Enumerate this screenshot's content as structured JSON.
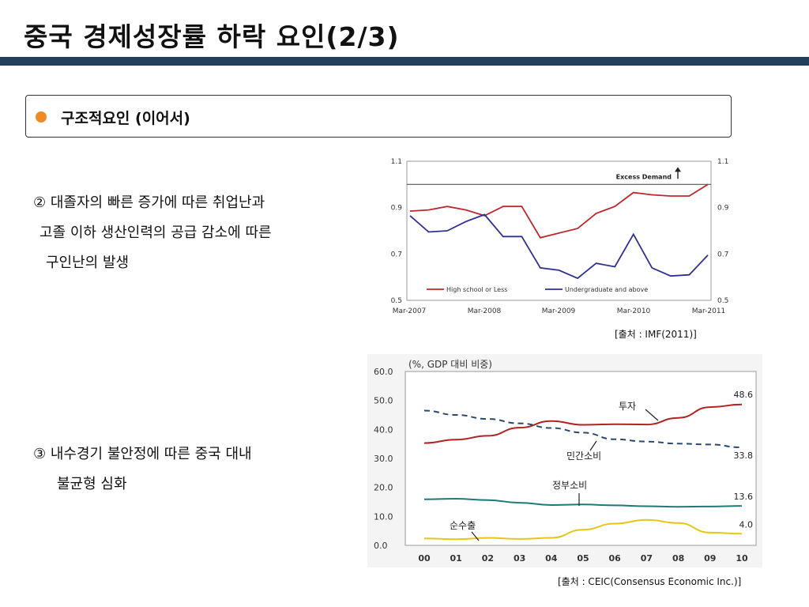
{
  "page": {
    "title": "중국 경제성장률 하락 요인(2/3)",
    "section_heading": "구조적요인 (이어서)",
    "point2": {
      "line1": "②  대졸자의 빠른 증가에 따른 취업난과",
      "line2": "고졸 이하 생산인력의 공급 감소에 따른",
      "line3": "구인난의 발생"
    },
    "point3": {
      "line1": "③  내수경기 불안정에 따른  중국 대내",
      "line2": "불균형 심화"
    },
    "source1": "[출처 : IMF(2011)]",
    "source2": "[출처 : CEIC(Consensus Economic Inc.)]",
    "colors": {
      "accent_bar": "#243f5a",
      "bullet": "#f08a24"
    }
  },
  "chart_data": [
    {
      "type": "line",
      "x_ticks": [
        "Mar-2007",
        "Mar-2008",
        "Mar-2009",
        "Mar-2010",
        "Mar-2011"
      ],
      "ylim": [
        0.5,
        1.1
      ],
      "y_ticks": [
        "1.1",
        "0.9",
        "0.7",
        "0.5"
      ],
      "y_ticks_right": [
        "1.1",
        "0.9",
        "0.7",
        "0.5"
      ],
      "reference_line": 1.0,
      "annotation": "Excess Demand",
      "legend_position": "bottom",
      "series": [
        {
          "name": "High school or Less",
          "color": "#c0272d",
          "values": [
            0.885,
            0.89,
            0.905,
            0.89,
            0.865,
            0.905,
            0.905,
            0.77,
            0.79,
            0.81,
            0.875,
            0.905,
            0.965,
            0.955,
            0.95,
            0.95,
            1.0
          ]
        },
        {
          "name": "Undergraduate and above",
          "color": "#2e3192",
          "values": [
            0.865,
            0.795,
            0.8,
            0.84,
            0.87,
            0.775,
            0.775,
            0.64,
            0.63,
            0.595,
            0.66,
            0.645,
            0.785,
            0.64,
            0.605,
            0.61,
            0.695
          ]
        }
      ]
    },
    {
      "type": "line",
      "title": "(%, GDP 대비 비중)",
      "categories": [
        "00",
        "01",
        "02",
        "03",
        "04",
        "05",
        "06",
        "07",
        "08",
        "09",
        "10"
      ],
      "ylim": [
        0,
        60
      ],
      "y_ticks": [
        "0.0",
        "10.0",
        "20.0",
        "30.0",
        "40.0",
        "50.0",
        "60.0"
      ],
      "legend_position": "none",
      "series": [
        {
          "name": "투자",
          "color": "#b22222",
          "style": "solid",
          "values": [
            35.3,
            36.5,
            37.8,
            40.6,
            42.9,
            41.6,
            41.8,
            41.7,
            44.0,
            47.7,
            48.6
          ],
          "end_label": "48.6"
        },
        {
          "name": "민간소비",
          "color": "#2b4a6b",
          "style": "dashed",
          "values": [
            46.5,
            45.0,
            43.6,
            42.1,
            40.5,
            38.9,
            36.6,
            35.8,
            35.1,
            34.8,
            33.8
          ],
          "end_label": "33.8"
        },
        {
          "name": "정부소비",
          "color": "#1f7a76",
          "style": "solid",
          "values": [
            15.9,
            16.1,
            15.6,
            14.7,
            13.9,
            14.1,
            13.8,
            13.5,
            13.3,
            13.4,
            13.6
          ],
          "end_label": "13.6"
        },
        {
          "name": "순수출",
          "color": "#e6c619",
          "style": "solid",
          "values": [
            2.4,
            2.1,
            2.6,
            2.2,
            2.6,
            5.4,
            7.5,
            8.8,
            7.7,
            4.4,
            4.0
          ],
          "end_label": "4.0"
        }
      ]
    }
  ]
}
